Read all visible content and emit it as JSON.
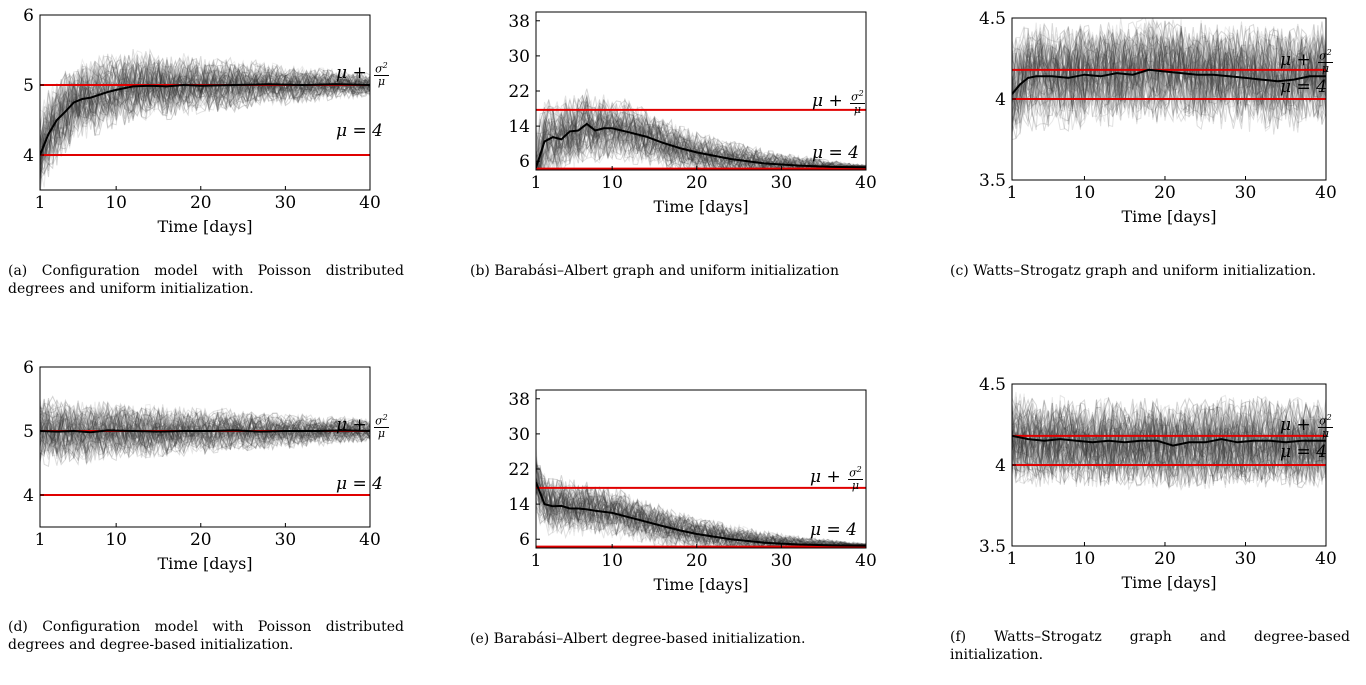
{
  "colors": {
    "reference_line": "#e00000",
    "mean_line": "#000000",
    "trajectory": "#333333",
    "frame": "#000000"
  },
  "chart_data": [
    {
      "id": "a",
      "type": "line",
      "caption": "(a) Configuration model with Poisson distributed degrees and uniform initialization.",
      "xlabel": "Time [days]",
      "xticks": [
        1,
        10,
        20,
        30,
        40
      ],
      "yticks": [
        4,
        5,
        6
      ],
      "xlim": [
        1,
        40
      ],
      "ylim": [
        3.5,
        6
      ],
      "reference_lines": [
        {
          "label": "μ + σ²/μ",
          "y": 5.0
        },
        {
          "label": "μ = 4",
          "y": 4.0
        }
      ],
      "series": [
        {
          "x": [
            1,
            2,
            3,
            4,
            5,
            6,
            7,
            8,
            9,
            10,
            12,
            14,
            16,
            18,
            20,
            24,
            28,
            32,
            36,
            40
          ],
          "y": [
            4.0,
            4.3,
            4.5,
            4.62,
            4.75,
            4.8,
            4.82,
            4.86,
            4.9,
            4.93,
            4.98,
            4.99,
            4.98,
            5.0,
            4.99,
            5.0,
            5.01,
            5.0,
            5.01,
            5.0
          ]
        }
      ],
      "noise": {
        "center": "mean",
        "spread_start": 0.7,
        "spread_end": 0.18
      }
    },
    {
      "id": "b",
      "type": "line",
      "caption": "(b) Barabási–Albert graph and uniform initialization",
      "xlabel": "Time [days]",
      "xticks": [
        1,
        10,
        20,
        30,
        40
      ],
      "yticks": [
        6,
        14,
        22,
        30,
        38
      ],
      "xlim": [
        1,
        40
      ],
      "ylim": [
        4,
        40
      ],
      "reference_lines": [
        {
          "label": "μ + σ²/μ",
          "y": 17.7
        },
        {
          "label": "μ = 4",
          "y": 4.3
        }
      ],
      "series": [
        {
          "x": [
            1,
            2,
            3,
            4,
            5,
            6,
            7,
            8,
            9,
            10,
            12,
            14,
            16,
            18,
            20,
            24,
            28,
            32,
            36,
            40
          ],
          "y": [
            4.5,
            10.5,
            11.5,
            11.0,
            12.8,
            13.0,
            14.5,
            13.0,
            13.5,
            13.5,
            12.6,
            11.6,
            10.2,
            9.0,
            8.0,
            6.5,
            5.5,
            5.0,
            4.7,
            4.6
          ]
        }
      ],
      "noise": {
        "center": "mean",
        "spread_start": 10,
        "spread_end": 0.6
      }
    },
    {
      "id": "c",
      "type": "line",
      "caption": "(c) Watts–Strogatz graph and uniform initialization.",
      "xlabel": "Time [days]",
      "xticks": [
        1,
        10,
        20,
        30,
        40
      ],
      "yticks": [
        3.5,
        4,
        4.5
      ],
      "xlim": [
        1,
        40
      ],
      "ylim": [
        3.5,
        4.5
      ],
      "reference_lines": [
        {
          "label": "μ + σ²/μ",
          "y": 4.18
        },
        {
          "label": "μ = 4",
          "y": 4.0
        }
      ],
      "series": [
        {
          "x": [
            1,
            2,
            3,
            4,
            6,
            8,
            10,
            12,
            14,
            16,
            18,
            20,
            22,
            24,
            26,
            28,
            30,
            32,
            34,
            36,
            38,
            40
          ],
          "y": [
            4.03,
            4.09,
            4.13,
            4.14,
            4.14,
            4.13,
            4.15,
            4.14,
            4.16,
            4.15,
            4.18,
            4.17,
            4.16,
            4.15,
            4.15,
            4.14,
            4.13,
            4.12,
            4.11,
            4.12,
            4.14,
            4.14
          ]
        }
      ],
      "noise": {
        "center": "mean",
        "spread_start": 0.35,
        "spread_end": 0.35
      }
    },
    {
      "id": "d",
      "type": "line",
      "caption": "(d) Configuration model with Poisson distributed degrees and degree-based initialization.",
      "xlabel": "Time [days]",
      "xticks": [
        1,
        10,
        20,
        30,
        40
      ],
      "yticks": [
        4,
        5,
        6
      ],
      "xlim": [
        1,
        40
      ],
      "ylim": [
        3.5,
        6
      ],
      "reference_lines": [
        {
          "label": "μ + σ²/μ",
          "y": 5.0
        },
        {
          "label": "μ = 4",
          "y": 4.0
        }
      ],
      "series": [
        {
          "x": [
            1,
            3,
            5,
            7,
            9,
            12,
            15,
            18,
            21,
            24,
            27,
            30,
            34,
            37,
            40
          ],
          "y": [
            5.0,
            4.99,
            5.0,
            4.98,
            5.01,
            5.0,
            4.99,
            5.0,
            5.0,
            5.01,
            4.99,
            5.0,
            5.0,
            5.01,
            5.0
          ]
        }
      ],
      "noise": {
        "center": "mean",
        "spread_start": 0.6,
        "spread_end": 0.2
      }
    },
    {
      "id": "e",
      "type": "line",
      "caption": "(e) Barabási–Albert degree-based initialization.",
      "xlabel": "Time [days]",
      "xticks": [
        1,
        10,
        20,
        30,
        40
      ],
      "yticks": [
        6,
        14,
        22,
        30,
        38
      ],
      "xlim": [
        1,
        40
      ],
      "ylim": [
        4,
        40
      ],
      "reference_lines": [
        {
          "label": "μ + σ²/μ",
          "y": 17.7
        },
        {
          "label": "μ = 4",
          "y": 4.3
        }
      ],
      "series": [
        {
          "x": [
            1,
            2,
            3,
            4,
            5,
            6,
            7,
            8,
            10,
            12,
            14,
            16,
            18,
            20,
            24,
            28,
            32,
            36,
            40
          ],
          "y": [
            19.0,
            14.0,
            13.5,
            13.6,
            13.0,
            13.0,
            12.8,
            12.5,
            12.0,
            11.0,
            10.0,
            9.0,
            8.0,
            7.2,
            6.0,
            5.2,
            4.8,
            4.6,
            4.5
          ]
        }
      ],
      "noise": {
        "center": "mean",
        "spread_start": 8,
        "spread_end": 0.6
      }
    },
    {
      "id": "f",
      "type": "line",
      "caption": "(f) Watts–Strogatz graph and degree-based initialization.",
      "xlabel": "Time [days]",
      "xticks": [
        1,
        10,
        20,
        30,
        40
      ],
      "yticks": [
        3.5,
        4,
        4.5
      ],
      "xlim": [
        1,
        40
      ],
      "ylim": [
        3.5,
        4.5
      ],
      "reference_lines": [
        {
          "label": "μ + σ²/μ",
          "y": 4.18
        },
        {
          "label": "μ = 4",
          "y": 4.0
        }
      ],
      "series": [
        {
          "x": [
            1,
            3,
            5,
            7,
            9,
            11,
            13,
            15,
            17,
            19,
            21,
            23,
            25,
            27,
            29,
            31,
            33,
            35,
            37,
            40
          ],
          "y": [
            4.18,
            4.16,
            4.15,
            4.16,
            4.15,
            4.14,
            4.15,
            4.14,
            4.15,
            4.15,
            4.12,
            4.14,
            4.14,
            4.16,
            4.14,
            4.15,
            4.15,
            4.14,
            4.15,
            4.15
          ]
        }
      ],
      "noise": {
        "center": "mean",
        "spread_start": 0.3,
        "spread_end": 0.3
      }
    }
  ]
}
